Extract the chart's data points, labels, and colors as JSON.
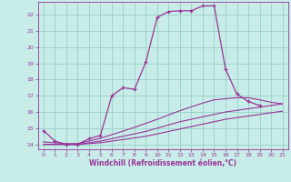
{
  "xlabel": "Windchill (Refroidissement éolien,°C)",
  "xlim": [
    -0.5,
    21.5
  ],
  "ylim": [
    13.7,
    22.8
  ],
  "xticks": [
    0,
    1,
    2,
    3,
    4,
    5,
    6,
    7,
    8,
    9,
    10,
    11,
    12,
    13,
    14,
    15,
    16,
    17,
    18,
    19,
    20,
    21
  ],
  "yticks": [
    14,
    15,
    16,
    17,
    18,
    19,
    20,
    21,
    22
  ],
  "bg_color": "#c8ede8",
  "grid_color": "#9ed4cc",
  "line_color": "#993399",
  "line1_x": [
    0,
    1,
    2,
    3,
    4,
    5,
    6,
    7,
    8,
    9,
    10,
    11,
    12,
    13,
    14,
    15,
    16,
    17,
    18,
    19
  ],
  "line1_y": [
    14.85,
    14.2,
    14.0,
    14.0,
    14.35,
    14.55,
    17.0,
    17.5,
    17.4,
    19.1,
    21.85,
    22.2,
    22.25,
    22.25,
    22.55,
    22.55,
    18.65,
    17.1,
    16.65,
    16.4
  ],
  "line2_x": [
    0,
    1,
    2,
    3,
    4,
    5,
    6,
    7,
    8,
    9,
    10,
    11,
    12,
    13,
    14,
    15,
    16,
    17,
    18,
    19,
    20,
    21
  ],
  "line2_y": [
    14.0,
    14.0,
    14.0,
    14.0,
    14.05,
    14.1,
    14.2,
    14.3,
    14.4,
    14.5,
    14.65,
    14.8,
    14.95,
    15.1,
    15.25,
    15.4,
    15.55,
    15.65,
    15.75,
    15.85,
    15.95,
    16.05
  ],
  "line3_x": [
    0,
    1,
    2,
    3,
    4,
    5,
    6,
    7,
    8,
    9,
    10,
    11,
    12,
    13,
    14,
    15,
    16,
    17,
    18,
    19,
    20,
    21
  ],
  "line3_y": [
    14.0,
    14.0,
    14.0,
    14.0,
    14.1,
    14.2,
    14.35,
    14.5,
    14.65,
    14.8,
    15.0,
    15.2,
    15.4,
    15.55,
    15.7,
    15.85,
    16.0,
    16.1,
    16.2,
    16.3,
    16.4,
    16.5
  ],
  "line4_x": [
    0,
    1,
    2,
    3,
    4,
    5,
    6,
    7,
    8,
    9,
    10,
    11,
    12,
    13,
    14,
    15,
    16,
    17,
    18,
    19,
    20,
    21
  ],
  "line4_y": [
    14.15,
    14.1,
    14.05,
    14.05,
    14.2,
    14.38,
    14.6,
    14.82,
    15.05,
    15.3,
    15.55,
    15.82,
    16.08,
    16.32,
    16.55,
    16.75,
    16.82,
    16.88,
    16.88,
    16.75,
    16.6,
    16.5
  ]
}
